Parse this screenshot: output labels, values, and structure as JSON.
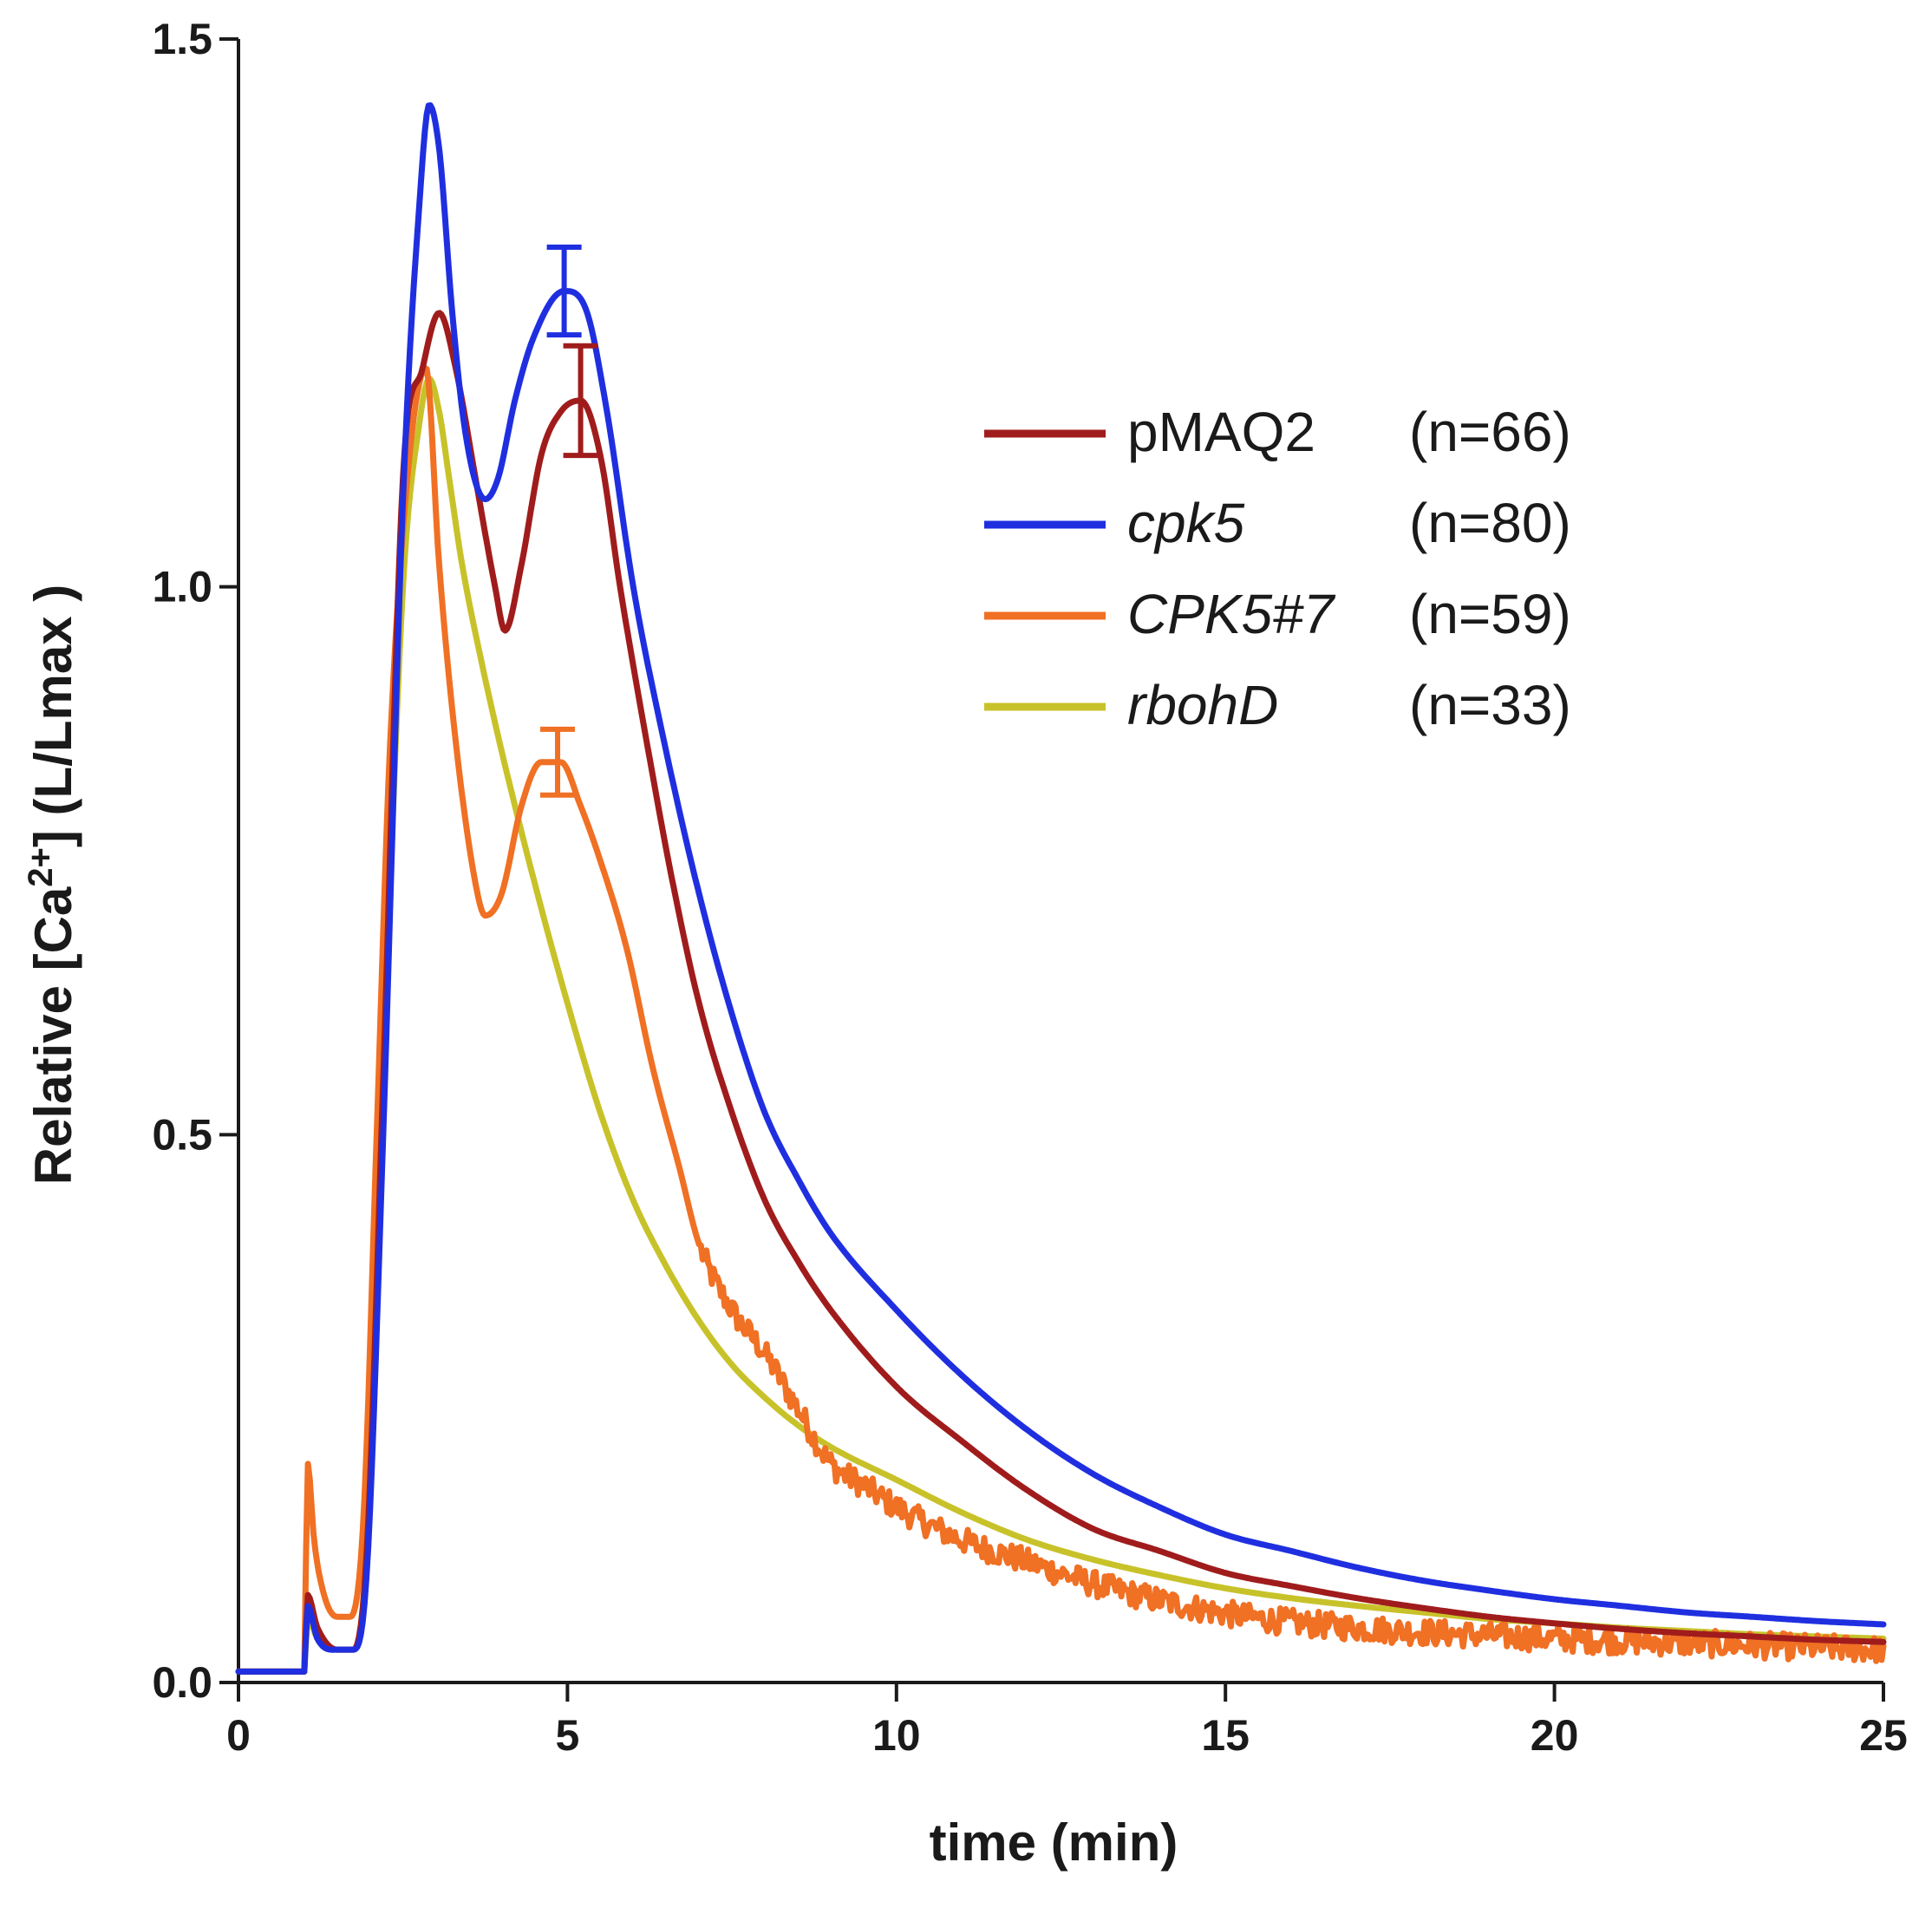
{
  "chart_data": {
    "type": "line",
    "title": "",
    "xlabel": "time (min)",
    "ylabel": {
      "prefix": "Relative [Ca",
      "superscript": "2+",
      "suffix": "] (L/Lmax )"
    },
    "xlim": [
      0,
      25
    ],
    "ylim": [
      0,
      1.5
    ],
    "x_ticks": [
      {
        "value": 0,
        "label": "0"
      },
      {
        "value": 5,
        "label": "5"
      },
      {
        "value": 10,
        "label": "10"
      },
      {
        "value": 15,
        "label": "15"
      },
      {
        "value": 20,
        "label": "20"
      },
      {
        "value": 25,
        "label": "25"
      }
    ],
    "y_ticks": [
      {
        "value": 0,
        "label": "0.0"
      },
      {
        "value": 0.5,
        "label": "0.5"
      },
      {
        "value": 1.0,
        "label": "1.0"
      },
      {
        "value": 1.5,
        "label": "1.5"
      }
    ],
    "grid": false,
    "legend_position": "top-right",
    "series": [
      {
        "name": "pMAQ2",
        "count": "(n=66)",
        "italic": false,
        "color": "#a01c1c",
        "noise": 0,
        "error_bar": {
          "x": 5.2,
          "y": 1.17,
          "err": 0.05
        },
        "x": [
          0,
          1,
          1.05,
          1.2,
          1.5,
          1.75,
          1.95,
          2.2,
          2.5,
          2.8,
          3.05,
          3.3,
          3.6,
          3.9,
          4.05,
          4.3,
          4.6,
          4.9,
          5.2,
          5.5,
          5.8,
          6.2,
          6.6,
          7.0,
          7.5,
          8.0,
          8.5,
          9.0,
          10,
          11,
          12,
          13,
          14,
          15,
          16,
          17,
          18,
          19,
          20,
          21,
          22,
          23,
          24,
          25
        ],
        "y": [
          0.01,
          0.01,
          0.08,
          0.05,
          0.03,
          0.03,
          0.12,
          0.55,
          1.1,
          1.2,
          1.25,
          1.2,
          1.1,
          1.0,
          0.96,
          1.02,
          1.12,
          1.16,
          1.17,
          1.12,
          1.0,
          0.86,
          0.73,
          0.62,
          0.52,
          0.44,
          0.385,
          0.34,
          0.27,
          0.22,
          0.175,
          0.14,
          0.12,
          0.1,
          0.088,
          0.077,
          0.068,
          0.06,
          0.054,
          0.049,
          0.045,
          0.042,
          0.039,
          0.037
        ]
      },
      {
        "name": "cpk5",
        "count": "(n=80)",
        "italic": true,
        "color": "#1f2fe0",
        "noise": 0,
        "error_bar": {
          "x": 4.95,
          "y": 1.27,
          "err": 0.04
        },
        "x": [
          0,
          1,
          1.05,
          1.2,
          1.5,
          1.75,
          1.95,
          2.2,
          2.5,
          2.75,
          2.9,
          3.05,
          3.25,
          3.45,
          3.75,
          3.95,
          4.2,
          4.5,
          4.95,
          5.3,
          5.6,
          6.0,
          6.5,
          7.0,
          7.5,
          8.0,
          8.5,
          9.0,
          10,
          11,
          12,
          13,
          14,
          15,
          16,
          17,
          18,
          19,
          20,
          21,
          22,
          23,
          24,
          25
        ],
        "y": [
          0.01,
          0.01,
          0.07,
          0.04,
          0.03,
          0.03,
          0.1,
          0.5,
          1.08,
          1.35,
          1.44,
          1.4,
          1.25,
          1.14,
          1.08,
          1.1,
          1.17,
          1.23,
          1.27,
          1.25,
          1.16,
          1.0,
          0.85,
          0.72,
          0.61,
          0.52,
          0.46,
          0.41,
          0.34,
          0.28,
          0.23,
          0.19,
          0.16,
          0.135,
          0.12,
          0.105,
          0.093,
          0.084,
          0.076,
          0.07,
          0.064,
          0.06,
          0.056,
          0.053
        ]
      },
      {
        "name": "CPK5#7",
        "count": "(n=59)",
        "italic": true,
        "color": "#f07024",
        "noise": 0.012,
        "error_bar": {
          "x": 4.85,
          "y": 0.84,
          "err": 0.03
        },
        "x": [
          0,
          1,
          1.05,
          1.15,
          1.3,
          1.5,
          1.7,
          1.9,
          2.1,
          2.3,
          2.6,
          2.85,
          3.05,
          3.3,
          3.6,
          3.75,
          4.0,
          4.3,
          4.6,
          4.9,
          5.2,
          5.5,
          5.9,
          6.3,
          6.7,
          7.0,
          7.5,
          8.0,
          8.5,
          9.0,
          9.5,
          10,
          11,
          12,
          13,
          14,
          15,
          16,
          17,
          18,
          19,
          20,
          21,
          22,
          23,
          24,
          25
        ],
        "y": [
          0.01,
          0.01,
          0.2,
          0.13,
          0.08,
          0.06,
          0.06,
          0.15,
          0.5,
          0.85,
          1.12,
          1.2,
          1.02,
          0.86,
          0.73,
          0.7,
          0.72,
          0.8,
          0.84,
          0.84,
          0.8,
          0.75,
          0.67,
          0.56,
          0.47,
          0.4,
          0.34,
          0.3,
          0.25,
          0.2,
          0.18,
          0.16,
          0.13,
          0.11,
          0.09,
          0.075,
          0.063,
          0.055,
          0.05,
          0.046,
          0.043,
          0.04,
          0.038,
          0.036,
          0.034,
          0.032,
          0.03
        ]
      },
      {
        "name": "rbohD",
        "count": "(n=33)",
        "italic": true,
        "color": "#c8c22a",
        "noise": 0,
        "error_bar": null,
        "x": [
          0,
          1,
          1.05,
          1.2,
          1.5,
          1.75,
          1.95,
          2.2,
          2.5,
          2.75,
          2.9,
          3.05,
          3.2,
          3.4,
          3.7,
          4.0,
          4.5,
          5.0,
          5.5,
          6.0,
          6.5,
          7.0,
          7.5,
          8.0,
          8.5,
          9.0,
          10,
          11,
          12,
          13,
          14,
          15,
          16,
          17,
          18,
          19,
          20,
          21,
          22,
          23,
          24,
          25
        ],
        "y": [
          0.01,
          0.01,
          0.06,
          0.04,
          0.03,
          0.03,
          0.12,
          0.55,
          1.0,
          1.15,
          1.19,
          1.16,
          1.1,
          1.02,
          0.93,
          0.85,
          0.73,
          0.62,
          0.52,
          0.44,
          0.38,
          0.33,
          0.29,
          0.26,
          0.235,
          0.215,
          0.185,
          0.155,
          0.13,
          0.112,
          0.098,
          0.086,
          0.077,
          0.07,
          0.064,
          0.058,
          0.054,
          0.05,
          0.047,
          0.044,
          0.042,
          0.04
        ]
      }
    ]
  }
}
